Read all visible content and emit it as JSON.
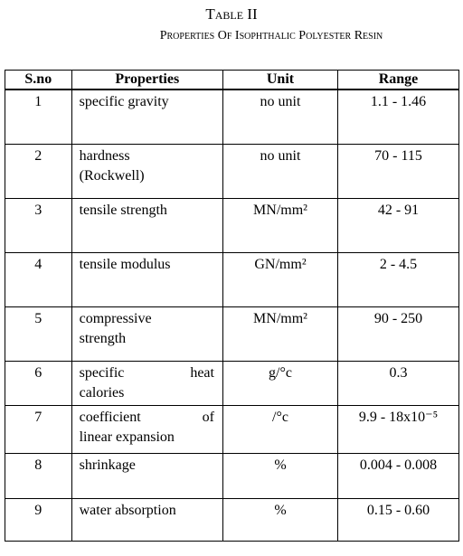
{
  "header": {
    "title": "Table II",
    "subtitle": "Properties Of Isophthalic Polyester Resin"
  },
  "table": {
    "columns": [
      "S.no",
      "Properties",
      "Unit",
      "Range"
    ],
    "rows": [
      [
        "1",
        [
          "specific gravity"
        ],
        "no unit",
        "1.1 - 1.46"
      ],
      [
        "2",
        [
          "hardness",
          "(Rockwell)"
        ],
        "no unit",
        "70 - 115"
      ],
      [
        "3",
        [
          "tensile strength"
        ],
        "MN/mm²",
        "42 - 91"
      ],
      [
        "4",
        [
          "tensile modulus"
        ],
        "GN/mm²",
        "2 - 4.5"
      ],
      [
        "5",
        [
          "compressive",
          "strength"
        ],
        "MN/mm²",
        "90 - 250"
      ],
      [
        "6",
        [
          "specific heat",
          "calories"
        ],
        "g/°c",
        "0.3"
      ],
      [
        "7",
        [
          "coefficient of",
          "linear expansion"
        ],
        "/°c",
        "9.9 - 18x10⁻⁵"
      ],
      [
        "8",
        [
          "shrinkage"
        ],
        "%",
        "0.004 - 0.008"
      ],
      [
        "9",
        [
          "water absorption"
        ],
        "%",
        "0.15 - 0.60"
      ]
    ]
  }
}
